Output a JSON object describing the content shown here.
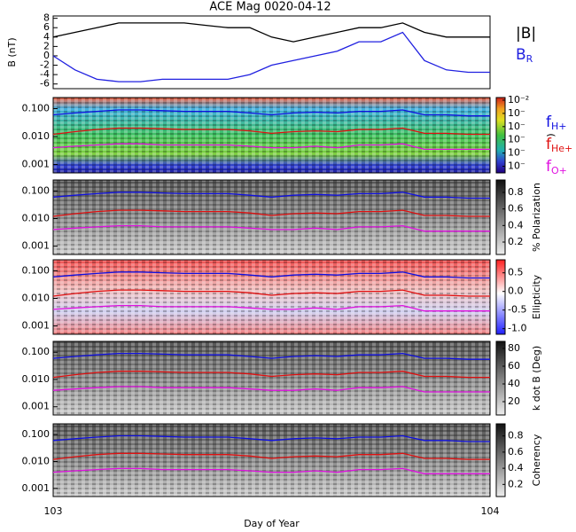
{
  "chart_data": [
    {
      "type": "line",
      "title": "ACE Mag 0020-04-12",
      "ylabel": "B (nT)",
      "ylim": [
        -7,
        8.5
      ],
      "yticks": [
        8,
        6,
        4,
        2,
        0,
        -2,
        -4,
        -6
      ],
      "xlim": [
        103,
        104
      ],
      "x": [
        103.0,
        103.05,
        103.1,
        103.15,
        103.2,
        103.25,
        103.3,
        103.35,
        103.4,
        103.45,
        103.5,
        103.55,
        103.6,
        103.65,
        103.7,
        103.75,
        103.8,
        103.85,
        103.9,
        103.95,
        104.0
      ],
      "series": [
        {
          "name": "|B|",
          "color": "#000000",
          "values": [
            4,
            5,
            6,
            7,
            7,
            7,
            7,
            6.5,
            6,
            6,
            4,
            3,
            4,
            5,
            6,
            6,
            7,
            5,
            4,
            4,
            4
          ]
        },
        {
          "name": "B",
          "subscript": "R",
          "color": "#2020e0",
          "values": [
            0,
            -3,
            -5,
            -5.5,
            -5.5,
            -5,
            -5,
            -5,
            -5,
            -4,
            -2,
            -1,
            0,
            1,
            3,
            3,
            5,
            -1,
            -3,
            -3.5,
            -3.5
          ]
        }
      ]
    },
    {
      "type": "line",
      "log": true,
      "ylim": [
        0.0005,
        0.25
      ],
      "yticks": [
        {
          "value": 0.1,
          "label": "0.100"
        },
        {
          "value": 0.01,
          "label": "0.010"
        },
        {
          "value": 0.001,
          "label": "0.001"
        }
      ],
      "xlim": [
        103,
        104
      ],
      "x": [
        103.0,
        103.05,
        103.1,
        103.15,
        103.2,
        103.25,
        103.3,
        103.35,
        103.4,
        103.45,
        103.5,
        103.55,
        103.6,
        103.65,
        103.7,
        103.75,
        103.8,
        103.85,
        103.9,
        103.95,
        104.0
      ],
      "colorbar": {
        "scale": "spectrum",
        "lim": [
          -7.5,
          -1.8
        ],
        "ticks": [
          {
            "value": -2,
            "label": "10⁻²"
          },
          {
            "value": -3,
            "label": "10⁻"
          },
          {
            "value": -4,
            "label": "10⁻"
          },
          {
            "value": -5,
            "label": "10⁻"
          },
          {
            "value": -6,
            "label": "10⁻"
          },
          {
            "value": -7,
            "label": "10⁻"
          }
        ],
        "label": ")"
      },
      "series": [
        {
          "name": "f",
          "subscript": "H+",
          "color": "#1010e0",
          "values": [
            0.06,
            0.07,
            0.08,
            0.09,
            0.09,
            0.085,
            0.08,
            0.08,
            0.08,
            0.07,
            0.06,
            0.07,
            0.075,
            0.07,
            0.08,
            0.08,
            0.09,
            0.06,
            0.06,
            0.055,
            0.055
          ]
        },
        {
          "name": "f",
          "subscript": "He+",
          "color": "#e01010",
          "values": [
            0.012,
            0.015,
            0.018,
            0.02,
            0.02,
            0.019,
            0.018,
            0.018,
            0.018,
            0.016,
            0.013,
            0.015,
            0.016,
            0.015,
            0.018,
            0.018,
            0.02,
            0.013,
            0.013,
            0.012,
            0.012
          ]
        },
        {
          "name": "f",
          "subscript": "O+",
          "color": "#e010e0",
          "values": [
            0.004,
            0.0045,
            0.005,
            0.0055,
            0.0055,
            0.005,
            0.005,
            0.005,
            0.005,
            0.0045,
            0.004,
            0.004,
            0.0045,
            0.004,
            0.005,
            0.005,
            0.0055,
            0.0035,
            0.0035,
            0.0035,
            0.0035
          ]
        }
      ]
    },
    {
      "type": "line",
      "log": true,
      "ylim": [
        0.0005,
        0.25
      ],
      "yticks": [
        {
          "value": 0.1,
          "label": "0.100"
        },
        {
          "value": 0.01,
          "label": "0.010"
        },
        {
          "value": 0.001,
          "label": "0.001"
        }
      ],
      "xlim": [
        103,
        104
      ],
      "x": [
        103.0,
        103.05,
        103.1,
        103.15,
        103.2,
        103.25,
        103.3,
        103.35,
        103.4,
        103.45,
        103.5,
        103.55,
        103.6,
        103.65,
        103.7,
        103.75,
        103.8,
        103.85,
        103.9,
        103.95,
        104.0
      ],
      "colorbar": {
        "scale": "gray",
        "lim": [
          0.05,
          0.95
        ],
        "ticks": [
          0.8,
          0.6,
          0.4,
          0.2
        ],
        "label": "% Polarization"
      },
      "series": [
        {
          "color": "#1010e0",
          "values": [
            0.06,
            0.07,
            0.08,
            0.09,
            0.09,
            0.085,
            0.08,
            0.08,
            0.08,
            0.07,
            0.06,
            0.07,
            0.075,
            0.07,
            0.08,
            0.08,
            0.09,
            0.06,
            0.06,
            0.055,
            0.055
          ]
        },
        {
          "color": "#e01010",
          "values": [
            0.012,
            0.015,
            0.018,
            0.02,
            0.02,
            0.019,
            0.018,
            0.018,
            0.018,
            0.016,
            0.013,
            0.015,
            0.016,
            0.015,
            0.018,
            0.018,
            0.02,
            0.013,
            0.013,
            0.012,
            0.012
          ]
        },
        {
          "color": "#e010e0",
          "values": [
            0.004,
            0.0045,
            0.005,
            0.0055,
            0.0055,
            0.005,
            0.005,
            0.005,
            0.005,
            0.0045,
            0.004,
            0.004,
            0.0045,
            0.004,
            0.005,
            0.005,
            0.0055,
            0.0035,
            0.0035,
            0.0035,
            0.0035
          ]
        }
      ]
    },
    {
      "type": "line",
      "log": true,
      "ylim": [
        0.0005,
        0.25
      ],
      "yticks": [
        {
          "value": 0.1,
          "label": "0.100"
        },
        {
          "value": 0.01,
          "label": "0.010"
        },
        {
          "value": 0.001,
          "label": "0.001"
        }
      ],
      "xlim": [
        103,
        104
      ],
      "x": [
        103.0,
        103.05,
        103.1,
        103.15,
        103.2,
        103.25,
        103.3,
        103.35,
        103.4,
        103.45,
        103.5,
        103.55,
        103.6,
        103.65,
        103.7,
        103.75,
        103.8,
        103.85,
        103.9,
        103.95,
        104.0
      ],
      "colorbar": {
        "scale": "redblue",
        "lim": [
          -1.15,
          0.85
        ],
        "ticks": [
          0.5,
          {
            "value": 0,
            "label": "0.0"
          },
          -0.5,
          {
            "value": -1,
            "label": "-1.0"
          }
        ],
        "label": "Ellipticity"
      },
      "series": [
        {
          "color": "#1010e0",
          "values": [
            0.06,
            0.07,
            0.08,
            0.09,
            0.09,
            0.085,
            0.08,
            0.08,
            0.08,
            0.07,
            0.06,
            0.07,
            0.075,
            0.07,
            0.08,
            0.08,
            0.09,
            0.06,
            0.06,
            0.055,
            0.055
          ]
        },
        {
          "color": "#e01010",
          "values": [
            0.012,
            0.015,
            0.018,
            0.02,
            0.02,
            0.019,
            0.018,
            0.018,
            0.018,
            0.016,
            0.013,
            0.015,
            0.016,
            0.015,
            0.018,
            0.018,
            0.02,
            0.013,
            0.013,
            0.012,
            0.012
          ]
        },
        {
          "color": "#e010e0",
          "values": [
            0.004,
            0.0045,
            0.005,
            0.0055,
            0.0055,
            0.005,
            0.005,
            0.005,
            0.005,
            0.0045,
            0.004,
            0.004,
            0.0045,
            0.004,
            0.005,
            0.005,
            0.0055,
            0.0035,
            0.0035,
            0.0035,
            0.0035
          ]
        }
      ]
    },
    {
      "type": "line",
      "log": true,
      "ylim": [
        0.0005,
        0.25
      ],
      "yticks": [
        {
          "value": 0.1,
          "label": "0.100"
        },
        {
          "value": 0.01,
          "label": "0.010"
        },
        {
          "value": 0.001,
          "label": "0.001"
        }
      ],
      "xlim": [
        103,
        104
      ],
      "x": [
        103.0,
        103.05,
        103.1,
        103.15,
        103.2,
        103.25,
        103.3,
        103.35,
        103.4,
        103.45,
        103.5,
        103.55,
        103.6,
        103.65,
        103.7,
        103.75,
        103.8,
        103.85,
        103.9,
        103.95,
        104.0
      ],
      "colorbar": {
        "scale": "gray",
        "lim": [
          5,
          88
        ],
        "ticks": [
          80,
          60,
          40,
          20
        ],
        "label": "k dot B (Deg)"
      },
      "series": [
        {
          "color": "#1010e0",
          "values": [
            0.06,
            0.07,
            0.08,
            0.09,
            0.09,
            0.085,
            0.08,
            0.08,
            0.08,
            0.07,
            0.06,
            0.07,
            0.075,
            0.07,
            0.08,
            0.08,
            0.09,
            0.06,
            0.06,
            0.055,
            0.055
          ]
        },
        {
          "color": "#e01010",
          "values": [
            0.012,
            0.015,
            0.018,
            0.02,
            0.02,
            0.019,
            0.018,
            0.018,
            0.018,
            0.016,
            0.013,
            0.015,
            0.016,
            0.015,
            0.018,
            0.018,
            0.02,
            0.013,
            0.013,
            0.012,
            0.012
          ]
        },
        {
          "color": "#e010e0",
          "values": [
            0.004,
            0.0045,
            0.005,
            0.0055,
            0.0055,
            0.005,
            0.005,
            0.005,
            0.005,
            0.0045,
            0.004,
            0.004,
            0.0045,
            0.004,
            0.005,
            0.005,
            0.0055,
            0.0035,
            0.0035,
            0.0035,
            0.0035
          ]
        }
      ]
    },
    {
      "type": "line",
      "log": true,
      "ylim": [
        0.0005,
        0.25
      ],
      "yticks": [
        {
          "value": 0.1,
          "label": "0.100"
        },
        {
          "value": 0.01,
          "label": "0.010"
        },
        {
          "value": 0.001,
          "label": "0.001"
        }
      ],
      "xlim": [
        103,
        104
      ],
      "xticks": [
        103,
        104
      ],
      "xlabel": "Day of Year",
      "x": [
        103.0,
        103.05,
        103.1,
        103.15,
        103.2,
        103.25,
        103.3,
        103.35,
        103.4,
        103.45,
        103.5,
        103.55,
        103.6,
        103.65,
        103.7,
        103.75,
        103.8,
        103.85,
        103.9,
        103.95,
        104.0
      ],
      "colorbar": {
        "scale": "gray",
        "lim": [
          0.05,
          0.95
        ],
        "ticks": [
          0.8,
          0.6,
          0.4,
          0.2
        ],
        "label": "Coherency"
      },
      "series": [
        {
          "color": "#1010e0",
          "values": [
            0.06,
            0.07,
            0.08,
            0.09,
            0.09,
            0.085,
            0.08,
            0.08,
            0.08,
            0.07,
            0.06,
            0.07,
            0.075,
            0.07,
            0.08,
            0.08,
            0.09,
            0.06,
            0.06,
            0.055,
            0.055
          ]
        },
        {
          "color": "#e01010",
          "values": [
            0.012,
            0.015,
            0.018,
            0.02,
            0.02,
            0.019,
            0.018,
            0.018,
            0.018,
            0.016,
            0.013,
            0.015,
            0.016,
            0.015,
            0.018,
            0.018,
            0.02,
            0.013,
            0.013,
            0.012,
            0.012
          ]
        },
        {
          "color": "#e010e0",
          "values": [
            0.004,
            0.0045,
            0.005,
            0.0055,
            0.0055,
            0.005,
            0.005,
            0.005,
            0.005,
            0.0045,
            0.004,
            0.004,
            0.0045,
            0.004,
            0.005,
            0.005,
            0.0055,
            0.0035,
            0.0035,
            0.0035,
            0.0035
          ]
        }
      ]
    }
  ]
}
